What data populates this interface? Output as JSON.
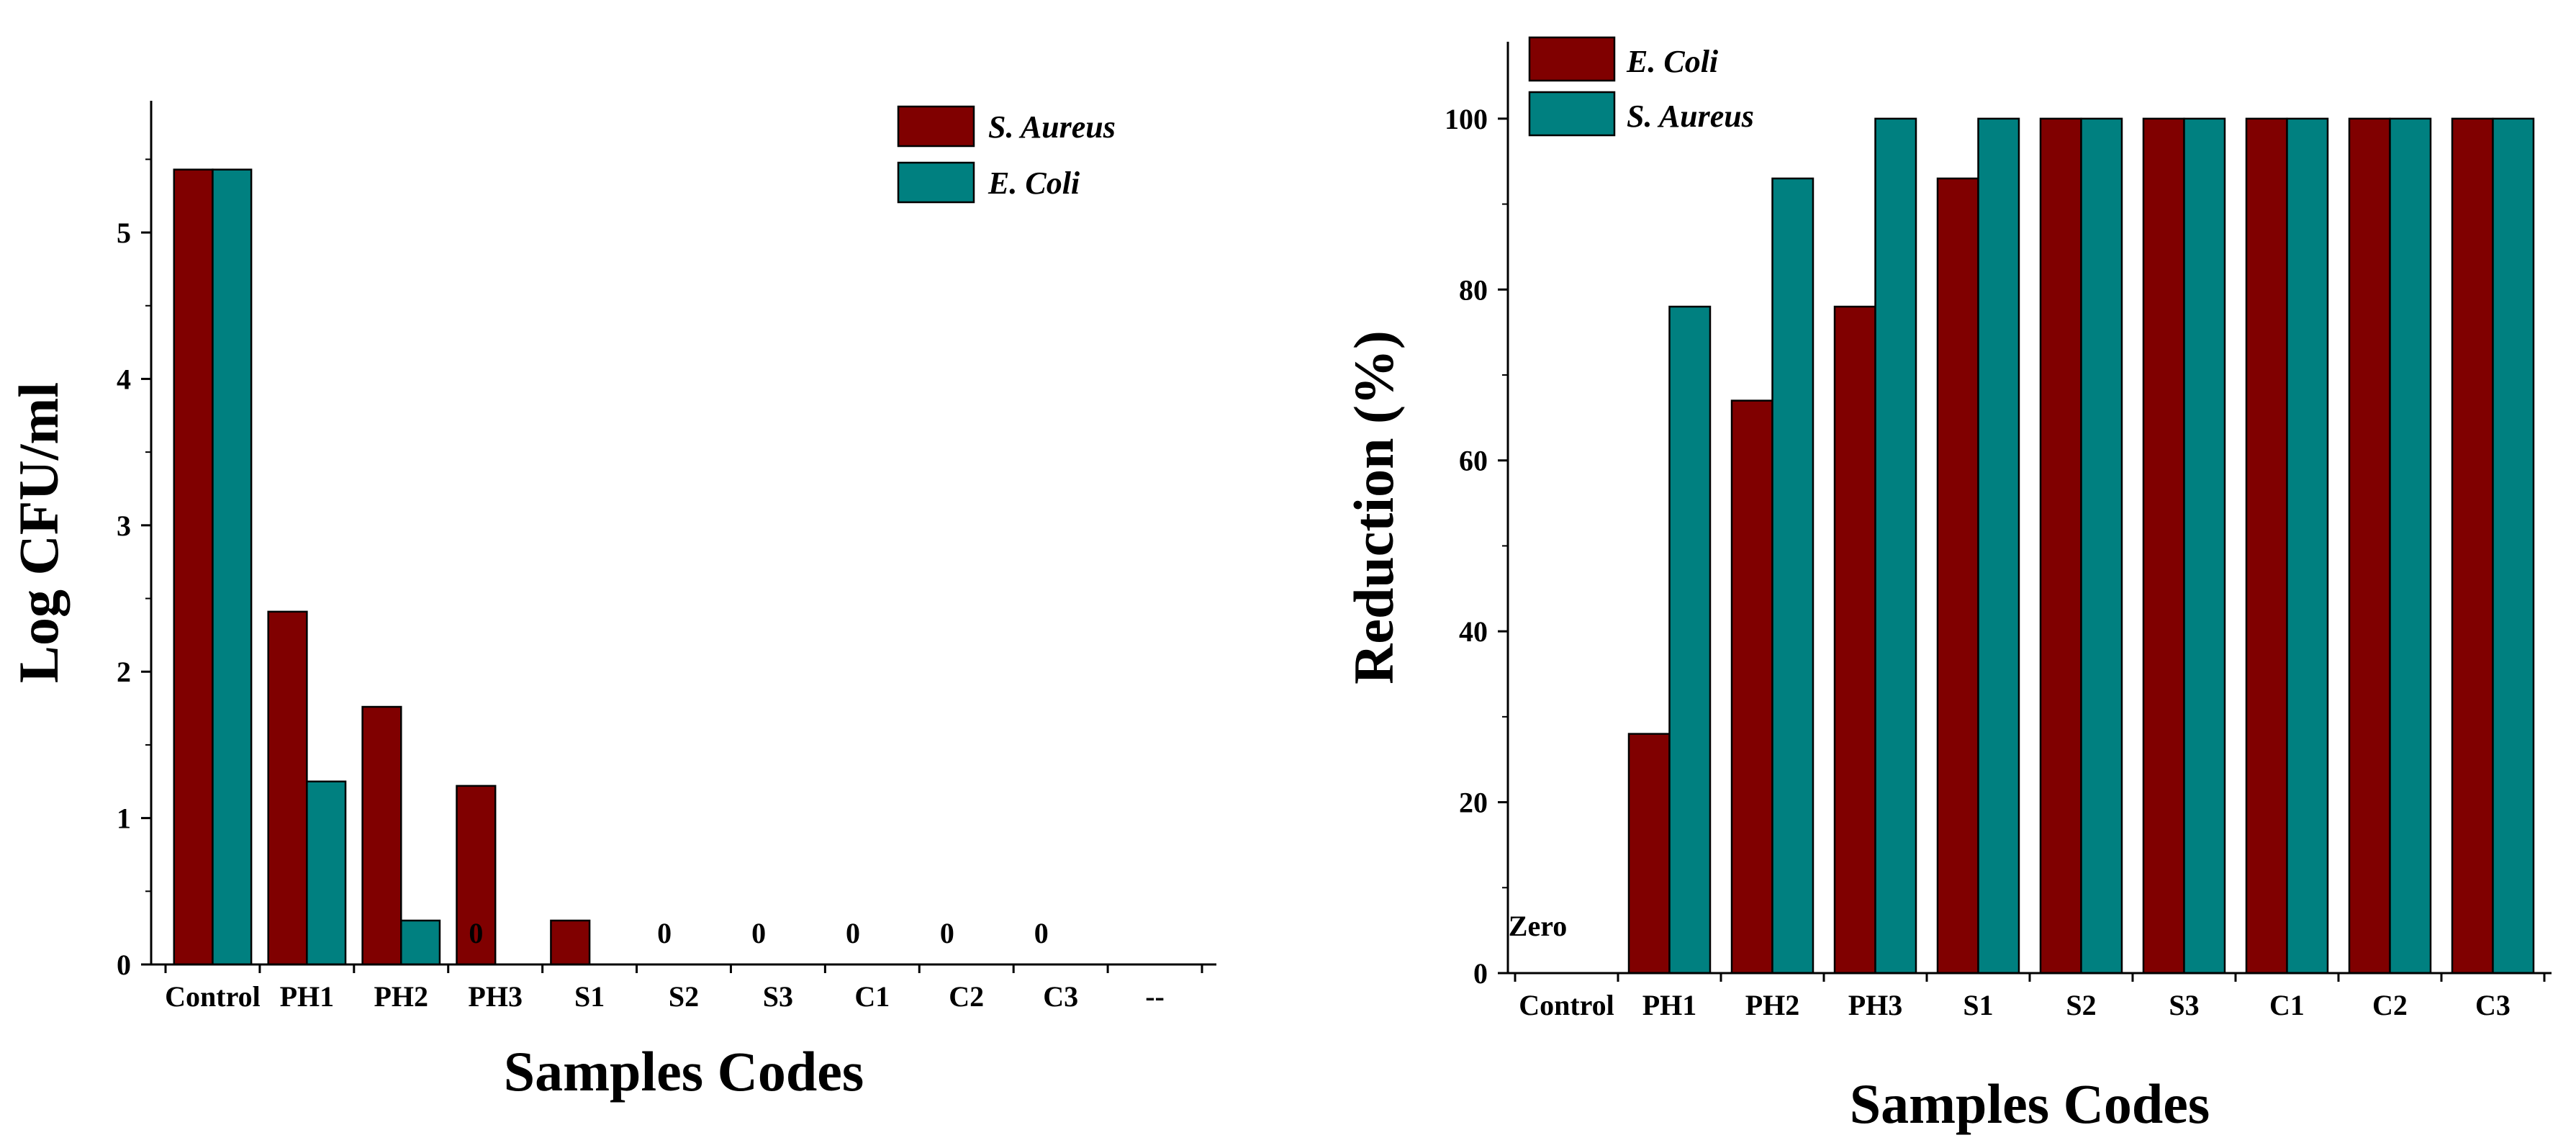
{
  "colors": {
    "s_aureus": "#800000",
    "e_coli": "#008080",
    "axis": "#000000"
  },
  "chart_data": [
    {
      "type": "bar",
      "xlabel": "Samples Codes",
      "ylabel": "Log CFU/ml",
      "ylim": [
        0,
        5.9
      ],
      "yticks": [
        "0",
        "1",
        "2",
        "3",
        "4",
        "5"
      ],
      "categories": [
        "Control",
        "PH1",
        "PH2",
        "PH3",
        "S1",
        "S2",
        "S3",
        "C1",
        "C2",
        "C3",
        "--"
      ],
      "series": [
        {
          "name": "S. Aureus",
          "color_key": "s_aureus",
          "values": [
            5.43,
            2.41,
            1.76,
            1.22,
            0.3,
            0,
            0,
            0,
            0,
            0,
            null
          ]
        },
        {
          "name": "E. Coli",
          "color_key": "e_coli",
          "values": [
            5.43,
            1.25,
            0.3,
            0,
            0,
            0,
            0,
            0,
            0,
            0,
            null
          ]
        }
      ],
      "annotations": [
        {
          "category": "PH3",
          "text": "0"
        },
        {
          "category": "S2",
          "text": "0"
        },
        {
          "category": "S3",
          "text": "0"
        },
        {
          "category": "C1",
          "text": "0"
        },
        {
          "category": "C2",
          "text": "0"
        },
        {
          "category": "C3",
          "text": "0"
        }
      ],
      "legend": {
        "position": "top-right"
      }
    },
    {
      "type": "bar",
      "xlabel": "Samples Codes",
      "ylabel": "Reduction (%)",
      "ylim": [
        0,
        109
      ],
      "yticks": [
        "0",
        "20",
        "40",
        "60",
        "80",
        "100"
      ],
      "categories": [
        "Control",
        "PH1",
        "PH2",
        "PH3",
        "S1",
        "S2",
        "S3",
        "C1",
        "C2",
        "C3"
      ],
      "series": [
        {
          "name": "E. Coli",
          "color_key": "s_aureus",
          "values": [
            0,
            28,
            67,
            78,
            93,
            100,
            100,
            100,
            100,
            100
          ]
        },
        {
          "name": "S. Aureus",
          "color_key": "e_coli",
          "values": [
            0,
            78,
            93,
            100,
            100,
            100,
            100,
            100,
            100,
            100
          ]
        }
      ],
      "annotations": [
        {
          "category": "Control",
          "text": "Zero"
        }
      ],
      "legend": {
        "position": "top-left"
      }
    }
  ]
}
